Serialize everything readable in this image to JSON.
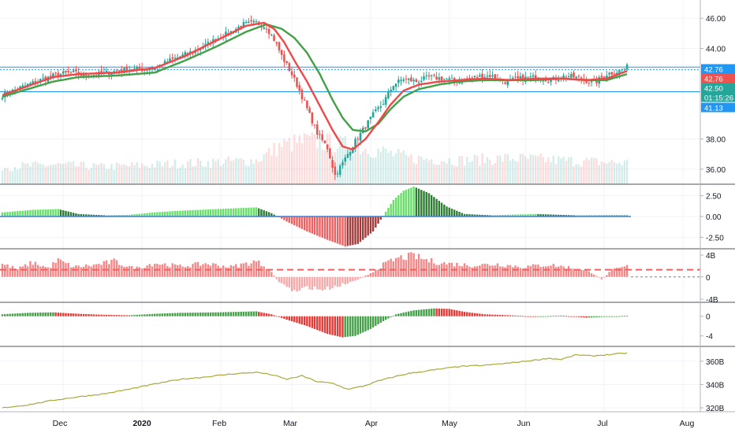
{
  "chart_data": {
    "type": "candlestick",
    "title": "",
    "x_labels": [
      "Dec",
      "2020",
      "Feb",
      "Mar",
      "Apr",
      "May",
      "Jun",
      "Jul",
      "Aug"
    ],
    "colors": {
      "up": "#26a69a",
      "down": "#ef5350",
      "ma_fast": "#f04848",
      "ma_slow": "#43a047",
      "hline": "#2196f3",
      "hist_up": "#66e066",
      "hist_down": "#f06060",
      "obv_line": "#a9a838"
    },
    "price_panel": {
      "y_range": [
        35,
        47
      ],
      "y_ticks": [
        "36.00",
        "38.00",
        "44.00",
        "46.00"
      ],
      "levels": [
        {
          "value": 42.76,
          "label": "42.76",
          "style": "solid",
          "color": "#2196f3"
        },
        {
          "value": 42.6,
          "label": "",
          "style": "dotted",
          "color": "#2196f3"
        },
        {
          "value": 41.13,
          "label": "41.13",
          "style": "solid",
          "color": "#2196f3"
        }
      ],
      "price_tags": [
        {
          "value": 42.76,
          "label": "42.76",
          "color": "#2196f3"
        },
        {
          "value": 42.76,
          "label": "42.76",
          "color": "#ef5350"
        },
        {
          "value": 42.5,
          "label": "42.50",
          "color": "#26a69a"
        },
        {
          "value": 41.45,
          "label": "01:15:26",
          "color": "#26a69a"
        },
        {
          "value": 41.13,
          "label": "41.13",
          "color": "#2196f3"
        }
      ],
      "close_anchors": [
        [
          0,
          40.9
        ],
        [
          7,
          41.4
        ],
        [
          15,
          41.9
        ],
        [
          22,
          42.3
        ],
        [
          28,
          42.4
        ],
        [
          32,
          42.2
        ],
        [
          38,
          42.3
        ],
        [
          45,
          42.5
        ],
        [
          50,
          42.6
        ],
        [
          55,
          42.6
        ],
        [
          60,
          42.7
        ],
        [
          66,
          43.2
        ],
        [
          72,
          43.6
        ],
        [
          78,
          44.0
        ],
        [
          84,
          44.6
        ],
        [
          90,
          45.1
        ],
        [
          95,
          45.6
        ],
        [
          100,
          45.7
        ],
        [
          104,
          45.4
        ],
        [
          107,
          44.6
        ],
        [
          110,
          43.5
        ],
        [
          113,
          42.6
        ],
        [
          116,
          41.6
        ],
        [
          120,
          40.0
        ],
        [
          124,
          38.4
        ],
        [
          128,
          37.4
        ],
        [
          131,
          35.6
        ],
        [
          134,
          36.4
        ],
        [
          138,
          37.6
        ],
        [
          142,
          38.6
        ],
        [
          146,
          39.6
        ],
        [
          150,
          40.4
        ],
        [
          154,
          41.6
        ],
        [
          158,
          42.0
        ],
        [
          163,
          41.8
        ],
        [
          168,
          42.1
        ],
        [
          174,
          42.0
        ],
        [
          180,
          41.8
        ],
        [
          186,
          42.1
        ],
        [
          192,
          42.2
        ],
        [
          198,
          41.8
        ],
        [
          204,
          42.0
        ],
        [
          210,
          42.1
        ],
        [
          216,
          41.9
        ],
        [
          222,
          42.2
        ],
        [
          228,
          42.0
        ],
        [
          233,
          41.7
        ],
        [
          238,
          42.3
        ],
        [
          243,
          42.5
        ],
        [
          246,
          42.76
        ]
      ],
      "ma_fast_anchors": [
        [
          0,
          40.9
        ],
        [
          10,
          41.5
        ],
        [
          20,
          42.1
        ],
        [
          30,
          42.3
        ],
        [
          45,
          42.4
        ],
        [
          60,
          42.7
        ],
        [
          72,
          43.5
        ],
        [
          84,
          44.5
        ],
        [
          96,
          45.5
        ],
        [
          103,
          45.7
        ],
        [
          107,
          45.3
        ],
        [
          111,
          44.4
        ],
        [
          115,
          43.2
        ],
        [
          120,
          41.8
        ],
        [
          125,
          40.2
        ],
        [
          130,
          38.6
        ],
        [
          134,
          37.5
        ],
        [
          138,
          37.3
        ],
        [
          143,
          38.0
        ],
        [
          148,
          39.1
        ],
        [
          153,
          40.3
        ],
        [
          158,
          41.2
        ],
        [
          164,
          41.6
        ],
        [
          172,
          41.8
        ],
        [
          180,
          41.9
        ],
        [
          190,
          42.0
        ],
        [
          200,
          41.9
        ],
        [
          210,
          42.0
        ],
        [
          220,
          42.0
        ],
        [
          230,
          41.9
        ],
        [
          238,
          42.0
        ],
        [
          246,
          42.5
        ]
      ],
      "ma_slow_anchors": [
        [
          0,
          40.8
        ],
        [
          10,
          41.3
        ],
        [
          20,
          41.8
        ],
        [
          30,
          42.1
        ],
        [
          45,
          42.2
        ],
        [
          60,
          42.4
        ],
        [
          72,
          43.2
        ],
        [
          84,
          44.1
        ],
        [
          96,
          45.1
        ],
        [
          104,
          45.6
        ],
        [
          110,
          45.3
        ],
        [
          115,
          44.7
        ],
        [
          120,
          43.7
        ],
        [
          125,
          42.3
        ],
        [
          130,
          40.6
        ],
        [
          134,
          39.4
        ],
        [
          138,
          38.6
        ],
        [
          143,
          38.5
        ],
        [
          148,
          39.0
        ],
        [
          153,
          40.0
        ],
        [
          158,
          40.8
        ],
        [
          164,
          41.3
        ],
        [
          172,
          41.6
        ],
        [
          180,
          41.8
        ],
        [
          190,
          41.9
        ],
        [
          200,
          41.9
        ],
        [
          210,
          41.9
        ],
        [
          220,
          42.0
        ],
        [
          230,
          41.9
        ],
        [
          238,
          41.9
        ],
        [
          246,
          42.3
        ]
      ],
      "volume_anchors": [
        [
          0,
          0.4
        ],
        [
          20,
          0.45
        ],
        [
          40,
          0.4
        ],
        [
          60,
          0.45
        ],
        [
          80,
          0.5
        ],
        [
          100,
          0.55
        ],
        [
          110,
          0.9
        ],
        [
          120,
          1.0
        ],
        [
          130,
          0.95
        ],
        [
          140,
          0.85
        ],
        [
          150,
          0.75
        ],
        [
          160,
          0.6
        ],
        [
          180,
          0.55
        ],
        [
          200,
          0.6
        ],
        [
          220,
          0.55
        ],
        [
          240,
          0.5
        ],
        [
          246,
          0.5
        ]
      ]
    },
    "macd_panel": {
      "y_range": [
        -3.5,
        3.5
      ],
      "y_ticks": [
        "2.50",
        "0.00",
        "-2.50"
      ],
      "hist_anchors": [
        [
          0,
          0.5
        ],
        [
          12,
          0.8
        ],
        [
          22,
          0.9
        ],
        [
          30,
          0.3
        ],
        [
          40,
          0.15
        ],
        [
          50,
          0.2
        ],
        [
          60,
          0.5
        ],
        [
          70,
          0.7
        ],
        [
          85,
          0.9
        ],
        [
          100,
          1.1
        ],
        [
          106,
          0.4
        ],
        [
          112,
          -0.6
        ],
        [
          120,
          -1.8
        ],
        [
          128,
          -2.8
        ],
        [
          135,
          -3.6
        ],
        [
          140,
          -3.3
        ],
        [
          146,
          -1.8
        ],
        [
          150,
          0.1
        ],
        [
          154,
          2.0
        ],
        [
          158,
          3.1
        ],
        [
          162,
          3.6
        ],
        [
          168,
          2.8
        ],
        [
          175,
          1.2
        ],
        [
          182,
          0.3
        ],
        [
          192,
          0.15
        ],
        [
          210,
          0.3
        ],
        [
          225,
          0.15
        ],
        [
          246,
          0.2
        ]
      ]
    },
    "panel3": {
      "y_range": [
        -4,
        4.5
      ],
      "y_ticks": [
        "4B",
        "0",
        "-4B"
      ],
      "dashed_level": 1.3,
      "hist_anchors": [
        [
          0,
          2.3
        ],
        [
          6,
          1.4
        ],
        [
          12,
          2.6
        ],
        [
          18,
          1.6
        ],
        [
          22,
          3.0
        ],
        [
          28,
          1.8
        ],
        [
          36,
          2.1
        ],
        [
          44,
          2.8
        ],
        [
          52,
          1.5
        ],
        [
          60,
          2.5
        ],
        [
          70,
          1.9
        ],
        [
          80,
          2.4
        ],
        [
          90,
          1.8
        ],
        [
          100,
          2.8
        ],
        [
          105,
          1.5
        ],
        [
          108,
          -0.5
        ],
        [
          112,
          -1.8
        ],
        [
          116,
          -2.8
        ],
        [
          120,
          -1.8
        ],
        [
          126,
          -2.3
        ],
        [
          132,
          -1.6
        ],
        [
          138,
          -0.8
        ],
        [
          144,
          0.4
        ],
        [
          150,
          2.2
        ],
        [
          156,
          3.4
        ],
        [
          162,
          3.8
        ],
        [
          168,
          2.9
        ],
        [
          175,
          2.4
        ],
        [
          185,
          2.1
        ],
        [
          195,
          2.3
        ],
        [
          205,
          1.8
        ],
        [
          215,
          2.2
        ],
        [
          225,
          1.6
        ],
        [
          232,
          0.8
        ],
        [
          236,
          -0.4
        ],
        [
          240,
          1.2
        ],
        [
          246,
          1.9
        ]
      ]
    },
    "panel4": {
      "y_range": [
        -5.5,
        2.2
      ],
      "y_ticks": [
        "0",
        "-4"
      ],
      "hist_anchors": [
        [
          0,
          0.4
        ],
        [
          10,
          0.7
        ],
        [
          20,
          0.8
        ],
        [
          30,
          0.5
        ],
        [
          40,
          0.3
        ],
        [
          50,
          0.2
        ],
        [
          60,
          0.5
        ],
        [
          70,
          0.7
        ],
        [
          85,
          0.8
        ],
        [
          100,
          1.0
        ],
        [
          106,
          0.4
        ],
        [
          112,
          -0.7
        ],
        [
          120,
          -2.0
        ],
        [
          128,
          -3.6
        ],
        [
          134,
          -4.3
        ],
        [
          139,
          -4.0
        ],
        [
          145,
          -2.6
        ],
        [
          150,
          -1.0
        ],
        [
          155,
          0.4
        ],
        [
          162,
          1.2
        ],
        [
          170,
          1.6
        ],
        [
          176,
          1.5
        ],
        [
          182,
          0.9
        ],
        [
          190,
          0.4
        ],
        [
          200,
          0.2
        ],
        [
          210,
          -0.1
        ],
        [
          220,
          0.15
        ],
        [
          230,
          -0.3
        ],
        [
          238,
          -0.1
        ],
        [
          246,
          0.1
        ]
      ]
    },
    "obv_panel": {
      "y_range": [
        318,
        370
      ],
      "y_ticks": [
        "360B",
        "340B",
        "320B"
      ],
      "line_anchors": [
        [
          0,
          320.0
        ],
        [
          10,
          322.5
        ],
        [
          20,
          326.5
        ],
        [
          30,
          329.5
        ],
        [
          40,
          332.0
        ],
        [
          50,
          336.0
        ],
        [
          60,
          340.5
        ],
        [
          70,
          344.5
        ],
        [
          80,
          346.5
        ],
        [
          90,
          349.0
        ],
        [
          100,
          350.5
        ],
        [
          106,
          348.5
        ],
        [
          112,
          344.5
        ],
        [
          118,
          347.5
        ],
        [
          124,
          342.5
        ],
        [
          130,
          341.0
        ],
        [
          136,
          336.0
        ],
        [
          142,
          338.5
        ],
        [
          148,
          343.0
        ],
        [
          154,
          346.5
        ],
        [
          160,
          349.5
        ],
        [
          170,
          352.5
        ],
        [
          180,
          355.5
        ],
        [
          190,
          356.5
        ],
        [
          200,
          358.5
        ],
        [
          210,
          361.0
        ],
        [
          215,
          362.5
        ],
        [
          220,
          361.5
        ],
        [
          226,
          365.5
        ],
        [
          232,
          364.5
        ],
        [
          238,
          365.5
        ],
        [
          246,
          367.0
        ]
      ]
    }
  }
}
